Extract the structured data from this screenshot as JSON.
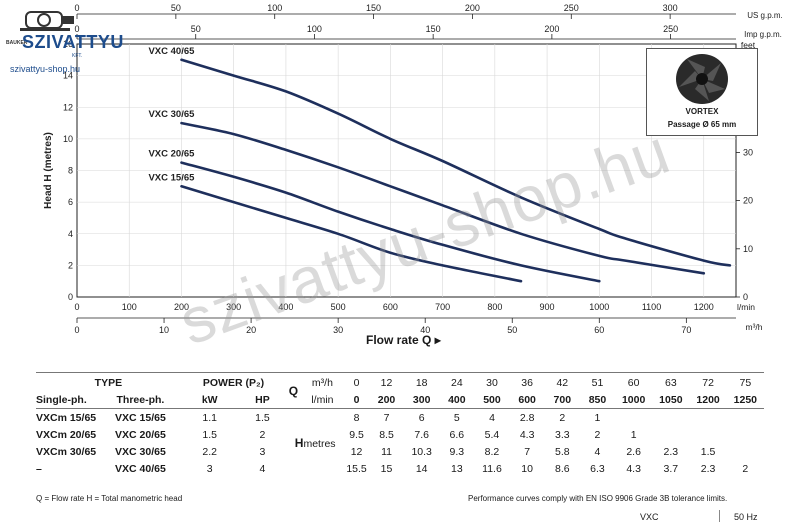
{
  "logo": {
    "brand": "SZIVATTYU",
    "small": "BAUKER",
    "kft": "KFT.",
    "url": "szivattyu-shop.hu"
  },
  "watermark": "szivattyu-shop.hu",
  "vortex": {
    "line1": "VORTEX",
    "line2": "Passage Ø 65 mm"
  },
  "colors": {
    "curve": "#1e2f5c",
    "axis": "#222222",
    "grid": "#d8d8d8",
    "logo": "#1d4c8c"
  },
  "chart_data": {
    "type": "line",
    "ylabel": "Head H (metres)",
    "ylim": [
      0,
      16
    ],
    "yticks": [
      0,
      2,
      4,
      6,
      8,
      10,
      12,
      14,
      16
    ],
    "xlabel": "Flow rate Q",
    "x_unit": "l/min",
    "xlim": [
      0,
      1260
    ],
    "xticks": [
      0,
      100,
      200,
      300,
      400,
      500,
      600,
      700,
      800,
      900,
      1000,
      1100,
      1200
    ],
    "secondary_axes": {
      "usgpm": {
        "unit": "US g.p.m.",
        "ticks": [
          0,
          50,
          100,
          150,
          200,
          250,
          300
        ]
      },
      "impgpm": {
        "unit": "Imp g.p.m.",
        "ticks": [
          0,
          50,
          100,
          150,
          200,
          250
        ]
      },
      "m3h": {
        "unit": "m³/h",
        "ticks": [
          0,
          10,
          20,
          30,
          40,
          50,
          60,
          70
        ]
      },
      "feet": {
        "unit": "feet",
        "ticks": [
          0,
          10,
          20,
          30,
          40,
          50
        ]
      }
    },
    "series": [
      {
        "name": "VXC 40/65",
        "x": [
          200,
          300,
          400,
          500,
          600,
          700,
          850,
          1000,
          1050,
          1200,
          1250
        ],
        "y": [
          15,
          14,
          13,
          11.6,
          10,
          8.6,
          6.3,
          4.3,
          3.7,
          2.3,
          2
        ]
      },
      {
        "name": "VXC 30/65",
        "x": [
          200,
          300,
          400,
          500,
          600,
          700,
          850,
          1000,
          1050,
          1200
        ],
        "y": [
          11,
          10.3,
          9.3,
          8.2,
          7,
          5.8,
          4,
          2.6,
          2.3,
          1.5
        ]
      },
      {
        "name": "VXC 20/65",
        "x": [
          200,
          300,
          400,
          500,
          600,
          700,
          850,
          1000
        ],
        "y": [
          8.5,
          7.6,
          6.6,
          5.4,
          4.3,
          3.3,
          2,
          1
        ]
      },
      {
        "name": "VXC 15/65",
        "x": [
          200,
          300,
          400,
          500,
          600,
          700,
          850
        ],
        "y": [
          7,
          6,
          5,
          4,
          2.8,
          2,
          1
        ]
      }
    ]
  },
  "table": {
    "type_header": "TYPE",
    "power_header": "POWER (P₂)",
    "q_label": "Q",
    "unit_m3h": "m³/h",
    "unit_lmin": "l/min",
    "single_header": "Single-ph.",
    "three_header": "Three-ph.",
    "kw_header": "kW",
    "hp_header": "HP",
    "h_label": "H",
    "h_unit": "metres",
    "q_m3h": [
      "0",
      "12",
      "18",
      "24",
      "30",
      "36",
      "42",
      "51",
      "60",
      "63",
      "72",
      "75"
    ],
    "q_lmin": [
      "0",
      "200",
      "300",
      "400",
      "500",
      "600",
      "700",
      "850",
      "1000",
      "1050",
      "1200",
      "1250"
    ],
    "rows": [
      {
        "single": "VXCm 15/65",
        "three": "VXC 15/65",
        "kw": "1.1",
        "hp": "1.5",
        "h": [
          "8",
          "7",
          "6",
          "5",
          "4",
          "2.8",
          "2",
          "1",
          "",
          "",
          "",
          ""
        ]
      },
      {
        "single": "VXCm 20/65",
        "three": "VXC 20/65",
        "kw": "1.5",
        "hp": "2",
        "h": [
          "9.5",
          "8.5",
          "7.6",
          "6.6",
          "5.4",
          "4.3",
          "3.3",
          "2",
          "1",
          "",
          "",
          ""
        ]
      },
      {
        "single": "VXCm 30/65",
        "three": "VXC 30/65",
        "kw": "2.2",
        "hp": "3",
        "h": [
          "12",
          "11",
          "10.3",
          "9.3",
          "8.2",
          "7",
          "5.8",
          "4",
          "2.6",
          "2.3",
          "1.5",
          ""
        ]
      },
      {
        "single": "–",
        "three": "VXC 40/65",
        "kw": "3",
        "hp": "4",
        "h": [
          "15.5",
          "15",
          "14",
          "13",
          "11.6",
          "10",
          "8.6",
          "6.3",
          "4.3",
          "3.7",
          "2.3",
          "2"
        ]
      }
    ]
  },
  "footer": {
    "legend": "Q = Flow rate  H = Total manometric head",
    "note": "Performance curves comply with EN ISO 9906 Grade 3B tolerance limits.",
    "model": "VXC",
    "freq": "50 Hz"
  }
}
